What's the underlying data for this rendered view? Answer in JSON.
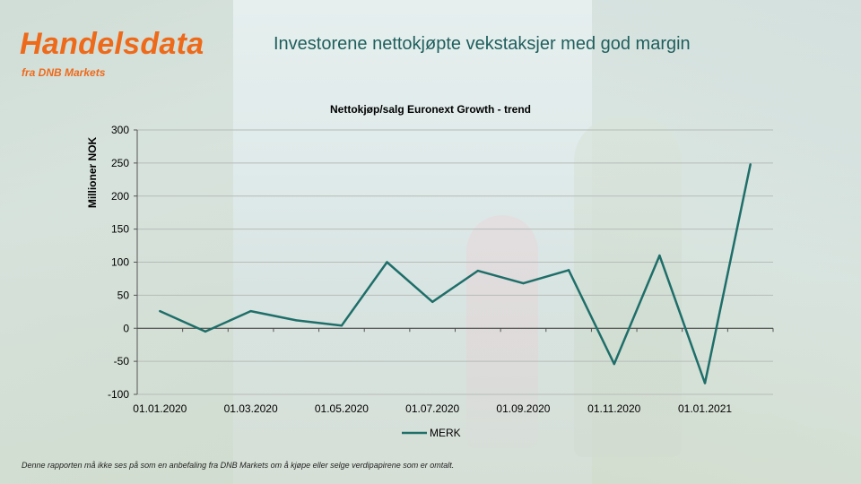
{
  "brand": {
    "name": "Handelsdata",
    "sub": "fra DNB Markets"
  },
  "headline": "Investorene nettokjøpte vekstaksjer med god margin",
  "disclaimer": "Denne rapporten må ikke ses på som en anbefaling fra DNB Markets om å kjøpe eller selge verdipapirene som er omtalt.",
  "colors": {
    "brand_orange": "#ee6a1b",
    "headline_teal": "#1f5f5c",
    "series_line": "#1f6e69"
  },
  "chart_data": {
    "type": "line",
    "title": "Nettokjøp/salg  Euronext Growth - trend",
    "ylabel": "Millioner NOK",
    "xlabel": "",
    "ylim": [
      -100,
      300
    ],
    "yticks": [
      300,
      250,
      200,
      150,
      100,
      50,
      0,
      -50,
      -100
    ],
    "xtick_labels": [
      "01.01.2020",
      "01.03.2020",
      "01.05.2020",
      "01.07.2020",
      "01.09.2020",
      "01.11.2020",
      "01.01.2021"
    ],
    "x": [
      "2020-01",
      "2020-02",
      "2020-03",
      "2020-04",
      "2020-05",
      "2020-06",
      "2020-07",
      "2020-08",
      "2020-09",
      "2020-10",
      "2020-11",
      "2020-12",
      "2021-01",
      "2021-02"
    ],
    "grid": true,
    "legend_position": "bottom",
    "series": [
      {
        "name": "MERK",
        "values": [
          26,
          -5,
          26,
          12,
          4,
          100,
          40,
          87,
          68,
          88,
          -54,
          110,
          -83,
          248
        ]
      }
    ]
  }
}
